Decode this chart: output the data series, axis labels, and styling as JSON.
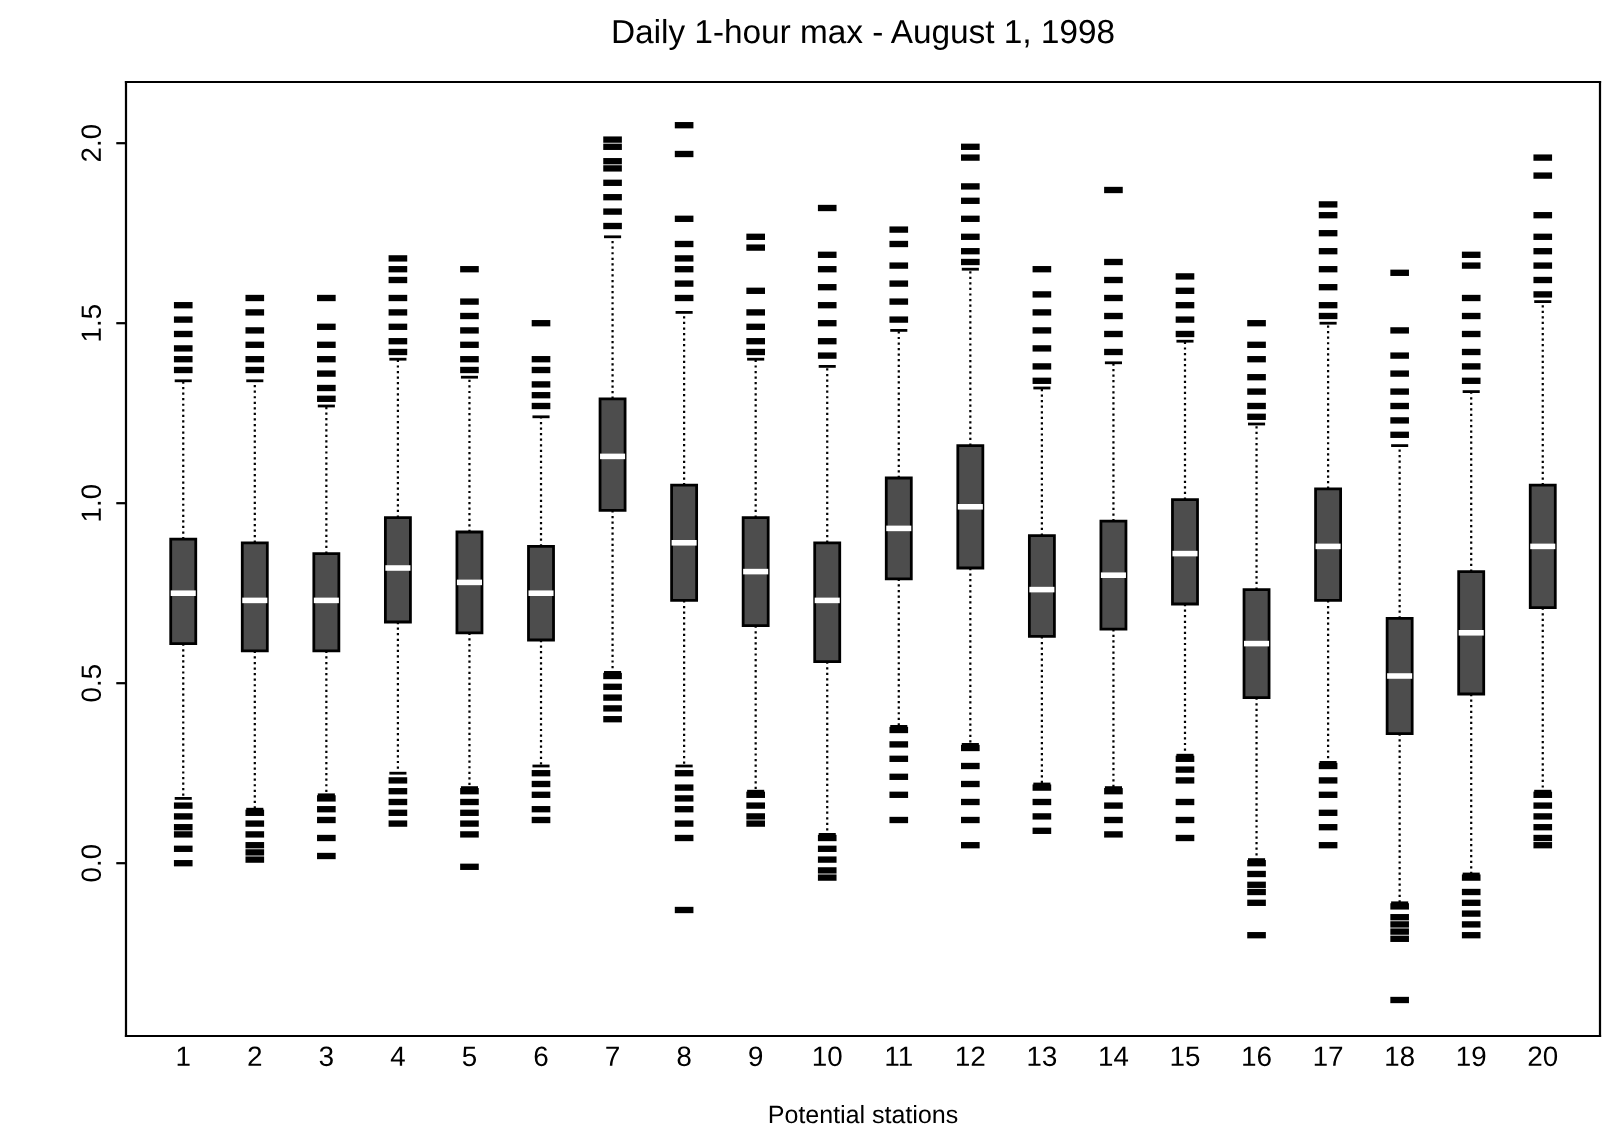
{
  "chart_data": {
    "type": "box",
    "title": "Daily 1-hour max - August 1, 1998",
    "xlabel": "Potential stations",
    "color": "#4d4d4d",
    "ylim": [
      -0.48,
      2.17
    ],
    "yticks": [
      {
        "value": 0,
        "label": "0.0"
      },
      0.5,
      {
        "value": 1,
        "label": "1.0"
      },
      1.5,
      {
        "value": 2,
        "label": "2.0"
      }
    ],
    "grid": false,
    "legend": false,
    "categories": [
      "1",
      "2",
      "3",
      "4",
      "5",
      "6",
      "7",
      "8",
      "9",
      "10",
      "11",
      "12",
      "13",
      "14",
      "15",
      "16",
      "17",
      "18",
      "19",
      "20"
    ],
    "boxes": [
      {
        "low": 0.18,
        "q1": 0.61,
        "median": 0.75,
        "q3": 0.9,
        "high": 1.34
      },
      {
        "low": 0.15,
        "q1": 0.59,
        "median": 0.73,
        "q3": 0.89,
        "high": 1.34
      },
      {
        "low": 0.19,
        "q1": 0.59,
        "median": 0.73,
        "q3": 0.86,
        "high": 1.27
      },
      {
        "low": 0.25,
        "q1": 0.67,
        "median": 0.82,
        "q3": 0.96,
        "high": 1.4
      },
      {
        "low": 0.21,
        "q1": 0.64,
        "median": 0.78,
        "q3": 0.92,
        "high": 1.35
      },
      {
        "low": 0.27,
        "q1": 0.62,
        "median": 0.75,
        "q3": 0.88,
        "high": 1.24
      },
      {
        "low": 0.53,
        "q1": 0.98,
        "median": 1.13,
        "q3": 1.29,
        "high": 1.74
      },
      {
        "low": 0.27,
        "q1": 0.73,
        "median": 0.89,
        "q3": 1.05,
        "high": 1.53
      },
      {
        "low": 0.2,
        "q1": 0.66,
        "median": 0.81,
        "q3": 0.96,
        "high": 1.4
      },
      {
        "low": 0.08,
        "q1": 0.56,
        "median": 0.73,
        "q3": 0.89,
        "high": 1.38
      },
      {
        "low": 0.38,
        "q1": 0.79,
        "median": 0.93,
        "q3": 1.07,
        "high": 1.48
      },
      {
        "low": 0.33,
        "q1": 0.82,
        "median": 0.99,
        "q3": 1.16,
        "high": 1.65
      },
      {
        "low": 0.22,
        "q1": 0.63,
        "median": 0.76,
        "q3": 0.91,
        "high": 1.32
      },
      {
        "low": 0.21,
        "q1": 0.65,
        "median": 0.8,
        "q3": 0.95,
        "high": 1.39
      },
      {
        "low": 0.3,
        "q1": 0.72,
        "median": 0.86,
        "q3": 1.01,
        "high": 1.45
      },
      {
        "low": 0.01,
        "q1": 0.46,
        "median": 0.61,
        "q3": 0.76,
        "high": 1.22
      },
      {
        "low": 0.28,
        "q1": 0.73,
        "median": 0.88,
        "q3": 1.04,
        "high": 1.5
      },
      {
        "low": -0.11,
        "q1": 0.36,
        "median": 0.52,
        "q3": 0.68,
        "high": 1.16
      },
      {
        "low": -0.03,
        "q1": 0.47,
        "median": 0.64,
        "q3": 0.81,
        "high": 1.31
      },
      {
        "low": 0.2,
        "q1": 0.71,
        "median": 0.88,
        "q3": 1.05,
        "high": 1.56
      }
    ],
    "series": [
      {
        "type": "scatter",
        "color": "#000000",
        "x": [
          "1",
          "1",
          "1",
          "1",
          "1",
          "1",
          "1",
          "1",
          "1",
          "1",
          "1",
          "1",
          "2",
          "2",
          "2",
          "2",
          "2",
          "2",
          "2",
          "2",
          "2",
          "2",
          "2",
          "2",
          "3",
          "3",
          "3",
          "3",
          "3",
          "3",
          "3",
          "3",
          "3",
          "3",
          "3",
          "3",
          "4",
          "4",
          "4",
          "4",
          "4",
          "4",
          "4",
          "4",
          "4",
          "4",
          "4",
          "4",
          "4",
          "5",
          "5",
          "5",
          "5",
          "5",
          "5",
          "5",
          "5",
          "5",
          "5",
          "5",
          "5",
          "5",
          "6",
          "6",
          "6",
          "6",
          "6",
          "6",
          "6",
          "6",
          "6",
          "6",
          "6",
          "7",
          "7",
          "7",
          "7",
          "7",
          "7",
          "7",
          "7",
          "7",
          "7",
          "7",
          "7",
          "7",
          "8",
          "8",
          "8",
          "8",
          "8",
          "8",
          "8",
          "8",
          "8",
          "8",
          "8",
          "8",
          "8",
          "8",
          "8",
          "9",
          "9",
          "9",
          "9",
          "9",
          "9",
          "9",
          "9",
          "9",
          "9",
          "9",
          "10",
          "10",
          "10",
          "10",
          "10",
          "10",
          "10",
          "10",
          "10",
          "10",
          "10",
          "10",
          "10",
          "11",
          "11",
          "11",
          "11",
          "11",
          "11",
          "11",
          "11",
          "11",
          "11",
          "11",
          "11",
          "12",
          "12",
          "12",
          "12",
          "12",
          "12",
          "12",
          "12",
          "12",
          "12",
          "12",
          "12",
          "12",
          "12",
          "13",
          "13",
          "13",
          "13",
          "13",
          "13",
          "13",
          "13",
          "13",
          "13",
          "13",
          "14",
          "14",
          "14",
          "14",
          "14",
          "14",
          "14",
          "14",
          "14",
          "14",
          "14",
          "15",
          "15",
          "15",
          "15",
          "15",
          "15",
          "15",
          "15",
          "15",
          "15",
          "15",
          "16",
          "16",
          "16",
          "16",
          "16",
          "16",
          "16",
          "16",
          "16",
          "16",
          "16",
          "16",
          "16",
          "17",
          "17",
          "17",
          "17",
          "17",
          "17",
          "17",
          "17",
          "17",
          "17",
          "17",
          "17",
          "17",
          "17",
          "18",
          "18",
          "18",
          "18",
          "18",
          "18",
          "18",
          "18",
          "18",
          "18",
          "18",
          "18",
          "18",
          "18",
          "19",
          "19",
          "19",
          "19",
          "19",
          "19",
          "19",
          "19",
          "19",
          "19",
          "19",
          "19",
          "19",
          "19",
          "20",
          "20",
          "20",
          "20",
          "20",
          "20",
          "20",
          "20",
          "20",
          "20",
          "20",
          "20",
          "20",
          "20"
        ],
        "values": [
          1.55,
          1.51,
          1.47,
          1.43,
          1.4,
          1.37,
          0.16,
          0.13,
          0.1,
          0.08,
          0.04,
          0.0,
          1.57,
          1.53,
          1.48,
          1.44,
          1.4,
          1.37,
          0.14,
          0.11,
          0.08,
          0.05,
          0.03,
          0.01,
          1.57,
          1.49,
          1.44,
          1.4,
          1.36,
          1.32,
          1.29,
          0.18,
          0.15,
          0.12,
          0.07,
          0.02,
          1.68,
          1.65,
          1.62,
          1.57,
          1.53,
          1.49,
          1.45,
          1.42,
          0.23,
          0.2,
          0.17,
          0.14,
          0.11,
          1.65,
          1.56,
          1.52,
          1.48,
          1.44,
          1.4,
          1.37,
          0.2,
          0.17,
          0.14,
          0.11,
          0.08,
          -0.01,
          1.5,
          1.4,
          1.37,
          1.33,
          1.3,
          1.27,
          0.25,
          0.22,
          0.19,
          0.15,
          0.12,
          2.01,
          1.99,
          1.95,
          1.93,
          1.89,
          1.85,
          1.81,
          1.77,
          0.52,
          0.49,
          0.46,
          0.43,
          0.4,
          2.05,
          1.97,
          1.79,
          1.72,
          1.68,
          1.65,
          1.61,
          1.57,
          0.25,
          0.21,
          0.18,
          0.15,
          0.11,
          0.07,
          -0.13,
          1.74,
          1.71,
          1.59,
          1.53,
          1.49,
          1.45,
          1.42,
          0.19,
          0.16,
          0.13,
          0.11,
          1.82,
          1.69,
          1.65,
          1.6,
          1.55,
          1.5,
          1.45,
          1.41,
          0.07,
          0.04,
          0.01,
          -0.02,
          -0.04,
          1.76,
          1.72,
          1.66,
          1.61,
          1.56,
          1.51,
          0.37,
          0.33,
          0.29,
          0.24,
          0.19,
          0.12,
          1.99,
          1.96,
          1.88,
          1.84,
          1.79,
          1.74,
          1.7,
          1.67,
          0.32,
          0.27,
          0.22,
          0.17,
          0.12,
          0.05,
          1.65,
          1.58,
          1.53,
          1.48,
          1.43,
          1.38,
          1.34,
          0.21,
          0.17,
          0.13,
          0.09,
          1.87,
          1.67,
          1.62,
          1.57,
          1.52,
          1.47,
          1.42,
          0.2,
          0.16,
          0.12,
          0.08,
          1.63,
          1.59,
          1.55,
          1.51,
          1.47,
          0.29,
          0.26,
          0.23,
          0.17,
          0.12,
          0.07,
          1.5,
          1.44,
          1.4,
          1.35,
          1.31,
          1.27,
          1.24,
          0.0,
          -0.03,
          -0.06,
          -0.08,
          -0.11,
          -0.2,
          1.83,
          1.8,
          1.75,
          1.7,
          1.65,
          1.6,
          1.55,
          1.52,
          0.27,
          0.23,
          0.19,
          0.14,
          0.1,
          0.05,
          1.64,
          1.48,
          1.41,
          1.36,
          1.31,
          1.27,
          1.23,
          1.19,
          -0.12,
          -0.15,
          -0.17,
          -0.19,
          -0.21,
          -0.38,
          1.69,
          1.66,
          1.57,
          1.52,
          1.47,
          1.42,
          1.38,
          1.34,
          -0.04,
          -0.08,
          -0.11,
          -0.14,
          -0.17,
          -0.2,
          1.96,
          1.91,
          1.8,
          1.74,
          1.7,
          1.66,
          1.62,
          1.58,
          0.19,
          0.16,
          0.13,
          0.1,
          0.07,
          0.05
        ]
      }
    ]
  }
}
